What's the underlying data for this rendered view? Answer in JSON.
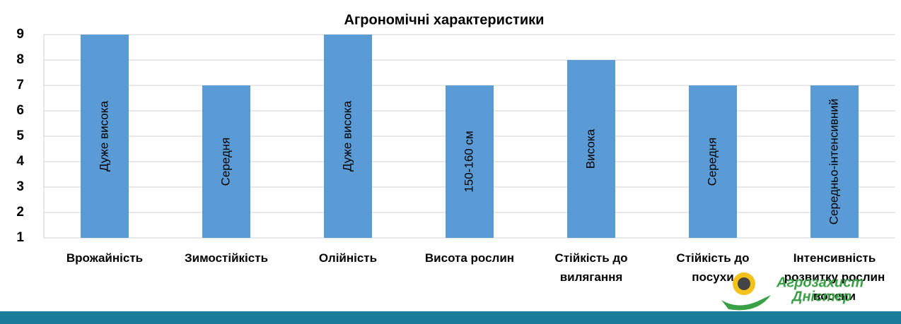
{
  "chart_data": {
    "type": "bar",
    "title": "Агрономічні характеристики",
    "categories": [
      "Врожайність",
      "Зимостійкість",
      "Олійність",
      "Висота рослин",
      "Стійкість до\nвилягання",
      "Стійкість до\nпосухи",
      "Інтенсивність\nрозвитку рослин\nвосени"
    ],
    "values": [
      9,
      7,
      9,
      7,
      8,
      7,
      7
    ],
    "annotations": [
      "Дуже висока",
      "Середня",
      "Дуже висока",
      "150-160 см",
      "Висока",
      "Середня",
      "Середньо-інтенсивний"
    ],
    "color": "#5b9bd5",
    "ylim": [
      1,
      9
    ],
    "yticks": [
      1,
      2,
      3,
      4,
      5,
      6,
      7,
      8,
      9
    ],
    "grid": true
  },
  "logo": {
    "line1": "Агрозахист",
    "line2": "Дністер"
  }
}
